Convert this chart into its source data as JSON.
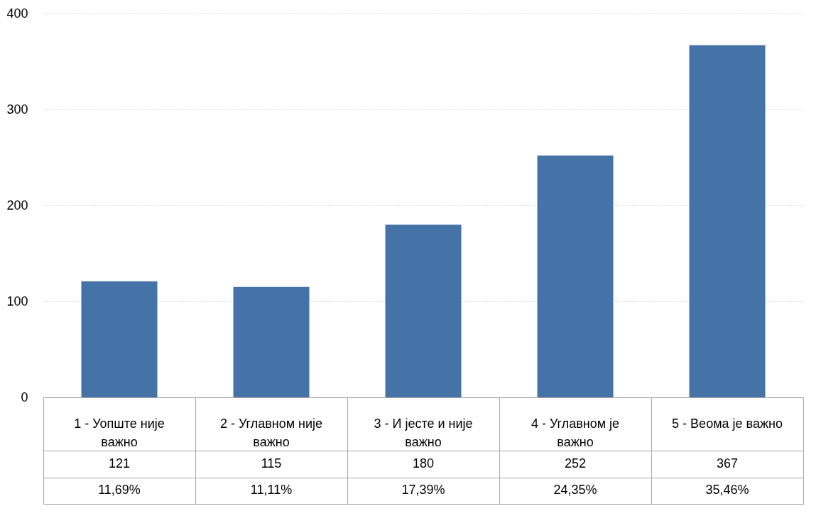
{
  "chart_data": {
    "type": "bar",
    "categories": [
      "1 - Уопште није важно",
      "2 - Углавном није важно",
      "3 - И јесте и није важно",
      "4 - Углавном је важно",
      "5 - Веома је важно"
    ],
    "values": [
      121,
      115,
      180,
      252,
      367
    ],
    "color": "#4573a7",
    "ylim": [
      0,
      400
    ],
    "yticks": [
      0,
      100,
      200,
      300,
      400
    ],
    "grid": "y",
    "data_labels": true,
    "annotations": [
      "11,69%",
      "11,11%",
      "17,39%",
      "24,35%",
      "35,46%"
    ]
  }
}
